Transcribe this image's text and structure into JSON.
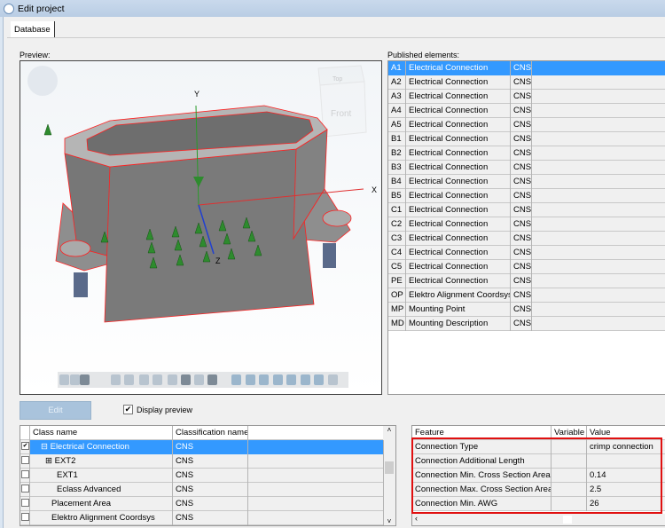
{
  "window": {
    "title": "Edit project"
  },
  "tabs": [
    {
      "label": "Database",
      "active": true
    }
  ],
  "preview": {
    "label": "Preview:",
    "axes": {
      "x": "X",
      "y": "Y",
      "z": "Z"
    },
    "viewcube": {
      "top": "Top",
      "front": "Front"
    },
    "display_preview": {
      "label": "Display preview",
      "checked": true
    }
  },
  "published": {
    "label": "Published elements:",
    "rows": [
      [
        "A1",
        "Electrical Connection",
        "CNS"
      ],
      [
        "A2",
        "Electrical Connection",
        "CNS"
      ],
      [
        "A3",
        "Electrical Connection",
        "CNS"
      ],
      [
        "A4",
        "Electrical Connection",
        "CNS"
      ],
      [
        "A5",
        "Electrical Connection",
        "CNS"
      ],
      [
        "B1",
        "Electrical Connection",
        "CNS"
      ],
      [
        "B2",
        "Electrical Connection",
        "CNS"
      ],
      [
        "B3",
        "Electrical Connection",
        "CNS"
      ],
      [
        "B4",
        "Electrical Connection",
        "CNS"
      ],
      [
        "B5",
        "Electrical Connection",
        "CNS"
      ],
      [
        "C1",
        "Electrical Connection",
        "CNS"
      ],
      [
        "C2",
        "Electrical Connection",
        "CNS"
      ],
      [
        "C3",
        "Electrical Connection",
        "CNS"
      ],
      [
        "C4",
        "Electrical Connection",
        "CNS"
      ],
      [
        "C5",
        "Electrical Connection",
        "CNS"
      ],
      [
        "PE",
        "Electrical Connection",
        "CNS"
      ],
      [
        "OP",
        "Elektro Alignment Coordsys",
        "CNS"
      ],
      [
        "MP",
        "Mounting Point",
        "CNS"
      ],
      [
        "MD",
        "Mounting Description",
        "CNS"
      ]
    ],
    "selected": 0
  },
  "edit_button": "Edit",
  "classes": {
    "headers": [
      "Class name",
      "Classification name"
    ],
    "rows": [
      {
        "name": "Electrical Connection",
        "cls": "CNS",
        "checked": true,
        "expander": "minus",
        "selected": true
      },
      {
        "name": "EXT2",
        "cls": "CNS",
        "checked": false,
        "expander": "plus"
      },
      {
        "name": "EXT1",
        "cls": "CNS",
        "checked": false
      },
      {
        "name": "Eclass Advanced",
        "cls": "CNS",
        "checked": false
      },
      {
        "name": "Placement Area",
        "cls": "CNS",
        "checked": false
      },
      {
        "name": "Elektro Alignment Coordsys",
        "cls": "CNS",
        "checked": false
      }
    ]
  },
  "features": {
    "headers": [
      "Feature",
      "Variable",
      "Value"
    ],
    "rows": [
      [
        "Connection Type",
        "",
        "crimp connection"
      ],
      [
        "Connection Additional Length",
        "",
        ""
      ],
      [
        "Connection Min. Cross Section Area",
        "",
        "0.14"
      ],
      [
        "Connection Max. Cross Section Area",
        "",
        "2.5"
      ],
      [
        "Connection Min. AWG",
        "",
        "26"
      ]
    ]
  },
  "colors": {
    "selection": "#3399ff",
    "highlight": "#e01010",
    "model": "#7a7a7a",
    "edges": "#ff2020"
  }
}
